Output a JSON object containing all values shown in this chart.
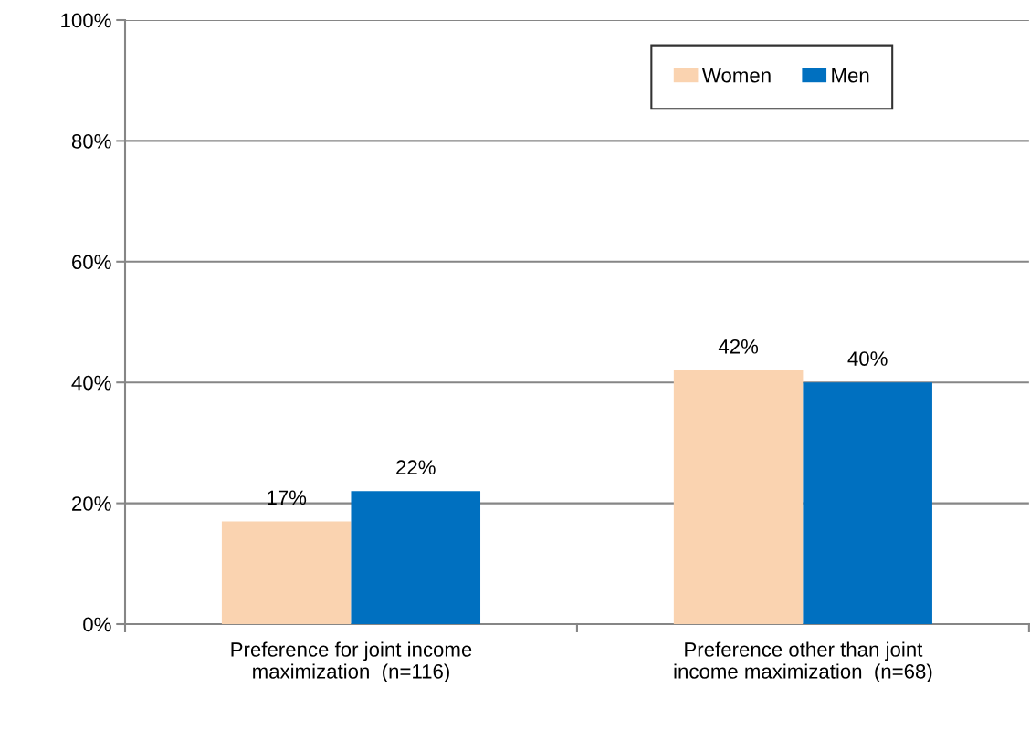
{
  "chart_data": {
    "type": "bar",
    "categories": [
      "Preference for joint income\nmaximization  (n=116)",
      "Preference other than joint\nincome maximization  (n=68)"
    ],
    "series": [
      {
        "name": "Women",
        "color": "#fad3b0",
        "values": [
          17,
          42
        ],
        "value_labels": [
          "17%",
          "42%"
        ]
      },
      {
        "name": "Men",
        "color": "#0070c0",
        "values": [
          22,
          40
        ],
        "value_labels": [
          "22%",
          "40%"
        ]
      }
    ],
    "ylim": [
      0,
      100
    ],
    "yticks": [
      {
        "value": 0,
        "label": "0%"
      },
      {
        "value": 20,
        "label": "20%"
      },
      {
        "value": 40,
        "label": "40%"
      },
      {
        "value": 60,
        "label": "60%"
      },
      {
        "value": 80,
        "label": "80%"
      },
      {
        "value": 100,
        "label": "100%"
      }
    ],
    "grid": "y",
    "legend": "top right"
  }
}
